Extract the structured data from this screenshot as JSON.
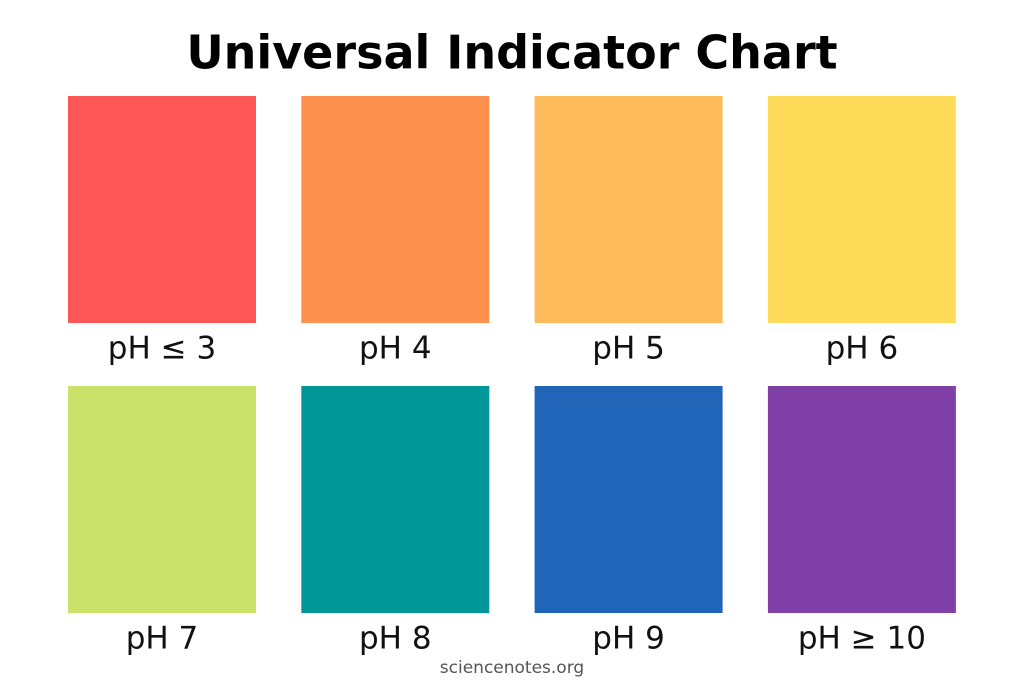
{
  "title": "Universal Indicator Chart",
  "swatches": [
    {
      "label": "pH ≤ 3",
      "color": "#fe5757"
    },
    {
      "label": "pH 4",
      "color": "#fe914e"
    },
    {
      "label": "pH 5",
      "color": "#fdbb5b"
    },
    {
      "label": "pH 6",
      "color": "#fedc5a"
    },
    {
      "label": "pH 7",
      "color": "#cae26a"
    },
    {
      "label": "pH 8",
      "color": "#019799"
    },
    {
      "label": "pH 9",
      "color": "#2165b9"
    },
    {
      "label": "pH ≥ 10",
      "color": "#8040a7"
    }
  ],
  "footer": "sciencenotes.org"
}
